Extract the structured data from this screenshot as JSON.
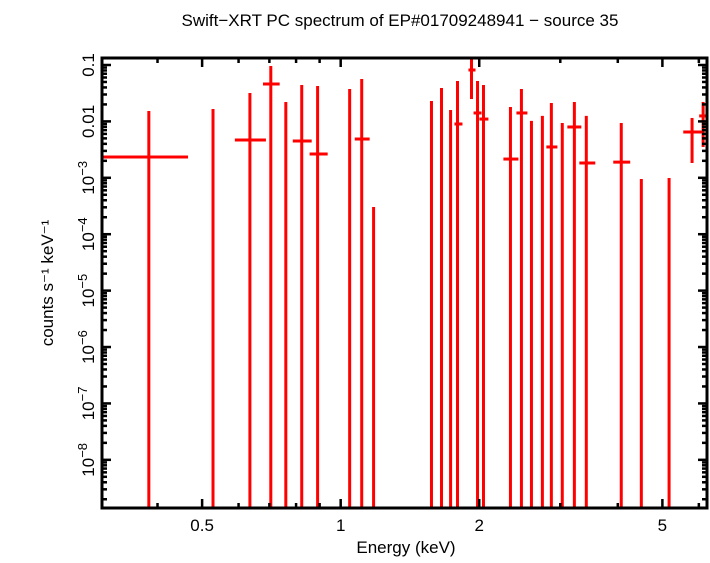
{
  "chart_data": {
    "type": "scatter",
    "title": "Swift−XRT PC spectrum of EP#01709248941 − source 35",
    "xlabel": "Energy (keV)",
    "ylabel": "counts s⁻¹ keV⁻¹",
    "xscale": "log",
    "yscale": "log",
    "xlim": [
      0.303,
      6.25
    ],
    "ylim": [
      1.4e-09,
      0.133
    ],
    "grid": false,
    "color": "#ff0000",
    "x_ticks": [
      {
        "v": 0.5,
        "label": "0.5"
      },
      {
        "v": 1,
        "label": "1"
      },
      {
        "v": 2,
        "label": "2"
      },
      {
        "v": 5,
        "label": "5"
      }
    ],
    "y_ticks": [
      {
        "v": 0.1,
        "base": "0.1",
        "exp": ""
      },
      {
        "v": 0.01,
        "base": "0.01",
        "exp": ""
      },
      {
        "v": 0.001,
        "base": "10",
        "exp": "−3"
      },
      {
        "v": 0.0001,
        "base": "10",
        "exp": "−4"
      },
      {
        "v": 1e-05,
        "base": "10",
        "exp": "−5"
      },
      {
        "v": 1e-06,
        "base": "10",
        "exp": "−6"
      },
      {
        "v": 1e-07,
        "base": "10",
        "exp": "−7"
      },
      {
        "v": 1e-08,
        "base": "10",
        "exp": "−8"
      }
    ],
    "points": [
      {
        "x": 0.383,
        "xlo": 0.305,
        "xhi": 0.466,
        "y": 0.00234,
        "ylo": null,
        "yhi": 0.0153
      },
      {
        "x": 0.528,
        "xlo": null,
        "xhi": null,
        "y": null,
        "ylo": null,
        "yhi": 0.0166
      },
      {
        "x": 0.635,
        "xlo": 0.589,
        "xhi": 0.688,
        "y": 0.00468,
        "ylo": null,
        "yhi": 0.0319
      },
      {
        "x": 0.705,
        "xlo": 0.678,
        "xhi": 0.737,
        "y": 0.046,
        "ylo": null,
        "yhi": 0.096
      },
      {
        "x": 0.76,
        "xlo": null,
        "xhi": null,
        "y": null,
        "ylo": null,
        "yhi": 0.0221
      },
      {
        "x": 0.823,
        "xlo": 0.787,
        "xhi": 0.865,
        "y": 0.00449,
        "ylo": null,
        "yhi": 0.0441
      },
      {
        "x": 0.891,
        "xlo": 0.856,
        "xhi": 0.937,
        "y": 0.00264,
        "ylo": null,
        "yhi": 0.0424
      },
      {
        "x": 1.046,
        "xlo": null,
        "xhi": null,
        "y": null,
        "ylo": null,
        "yhi": 0.0375
      },
      {
        "x": 1.111,
        "xlo": 1.073,
        "xhi": 1.156,
        "y": 0.00487,
        "ylo": null,
        "yhi": 0.0565
      },
      {
        "x": 1.179,
        "xlo": null,
        "xhi": null,
        "y": null,
        "ylo": null,
        "yhi": 0.000303
      },
      {
        "x": 1.575,
        "xlo": null,
        "xhi": null,
        "y": null,
        "ylo": null,
        "yhi": 0.023
      },
      {
        "x": 1.656,
        "xlo": null,
        "xhi": null,
        "y": null,
        "ylo": null,
        "yhi": 0.039
      },
      {
        "x": 1.733,
        "xlo": null,
        "xhi": null,
        "y": null,
        "ylo": null,
        "yhi": 0.0159
      },
      {
        "x": 1.794,
        "xlo": 1.767,
        "xhi": 1.839,
        "y": 0.00899,
        "ylo": null,
        "yhi": 0.052
      },
      {
        "x": 1.924,
        "xlo": 1.895,
        "xhi": 1.963,
        "y": 0.0815,
        "ylo": 0.0249,
        "yhi": 0.2
      },
      {
        "x": 1.983,
        "xlo": 1.944,
        "xhi": 2.023,
        "y": 0.0141,
        "ylo": null,
        "yhi": 0.052
      },
      {
        "x": 2.043,
        "xlo": 2.002,
        "xhi": 2.094,
        "y": 0.011,
        "ylo": null,
        "yhi": 0.0441
      },
      {
        "x": 2.338,
        "xlo": 2.257,
        "xhi": 2.433,
        "y": 0.00215,
        "ylo": null,
        "yhi": 0.018
      },
      {
        "x": 2.47,
        "xlo": 2.409,
        "xhi": 2.545,
        "y": 0.0141,
        "ylo": null,
        "yhi": 0.0375
      },
      {
        "x": 2.597,
        "xlo": null,
        "xhi": null,
        "y": null,
        "ylo": null,
        "yhi": 0.0102
      },
      {
        "x": 2.743,
        "xlo": null,
        "xhi": null,
        "y": null,
        "ylo": null,
        "yhi": 0.0125
      },
      {
        "x": 2.869,
        "xlo": 2.798,
        "xhi": 2.957,
        "y": 0.00352,
        "ylo": null,
        "yhi": 0.0212
      },
      {
        "x": 3.03,
        "xlo": null,
        "xhi": null,
        "y": null,
        "ylo": null,
        "yhi": 0.00937
      },
      {
        "x": 3.219,
        "xlo": 3.108,
        "xhi": 3.333,
        "y": 0.00796,
        "ylo": null,
        "yhi": 0.0221
      },
      {
        "x": 3.417,
        "xlo": 3.3,
        "xhi": 3.574,
        "y": 0.00183,
        "ylo": null,
        "yhi": 0.0125
      },
      {
        "x": 4.07,
        "xlo": 3.91,
        "xhi": 4.256,
        "y": 0.0019,
        "ylo": null,
        "yhi": 0.00937
      },
      {
        "x": 4.5,
        "xlo": null,
        "xhi": null,
        "y": null,
        "ylo": null,
        "yhi": 0.00095
      },
      {
        "x": 5.17,
        "xlo": null,
        "xhi": null,
        "y": null,
        "ylo": null,
        "yhi": 0.00099
      },
      {
        "x": 5.8,
        "xlo": 5.55,
        "xhi": 6.1,
        "y": 0.00649,
        "ylo": 0.00183,
        "yhi": 0.0115
      },
      {
        "x": 6.13,
        "xlo": 6.01,
        "xhi": 6.27,
        "y": 0.0125,
        "ylo": 0.00352,
        "yhi": 0.0221
      }
    ]
  }
}
